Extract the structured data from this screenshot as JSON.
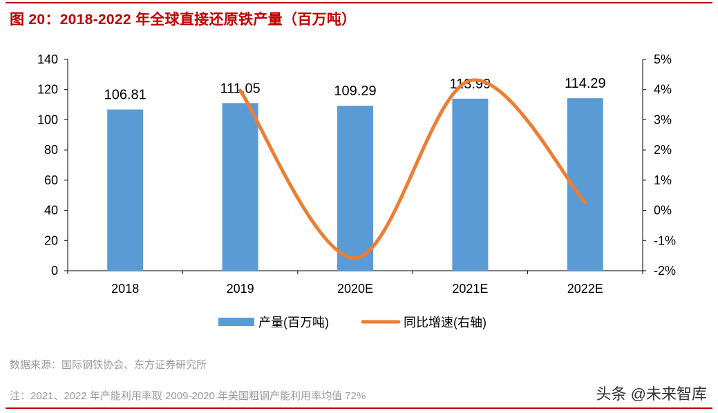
{
  "title": "图 20：2018-2022 年全球直接还原铁产量（百万吨）",
  "source": "数据来源：国际钢铁协会、东方证券研究所",
  "note": "注：2021、2022 年产能利用率取 2009-2020 年美国粗钢产能利用率均值 72%",
  "watermark": "头条 @未来智库",
  "colors": {
    "bar": "#5b9bd5",
    "line": "#ed7d31",
    "title": "#c00000"
  },
  "chart_data": {
    "type": "bar+line",
    "categories": [
      "2018",
      "2019",
      "2020E",
      "2021E",
      "2022E"
    ],
    "series": [
      {
        "name": "产量(百万吨)",
        "type": "bar",
        "axis": "left",
        "values": [
          106.81,
          111.05,
          109.29,
          113.99,
          114.29
        ],
        "labels": [
          "106.81",
          "111.05",
          "109.29",
          "113.99",
          "114.29"
        ]
      },
      {
        "name": "同比增速(右轴)",
        "type": "line",
        "axis": "right",
        "smooth": true,
        "values": [
          null,
          3.97,
          -1.58,
          4.3,
          0.26
        ]
      }
    ],
    "left_axis": {
      "ylim": [
        0,
        140
      ],
      "ticks": [
        "0",
        "20",
        "40",
        "60",
        "80",
        "100",
        "120",
        "140"
      ]
    },
    "right_axis": {
      "ylim": [
        -2,
        5
      ],
      "ticks": [
        "-2%",
        "-1%",
        "0%",
        "1%",
        "2%",
        "3%",
        "4%",
        "5%"
      ]
    },
    "grid": false,
    "legend": "bottom"
  }
}
